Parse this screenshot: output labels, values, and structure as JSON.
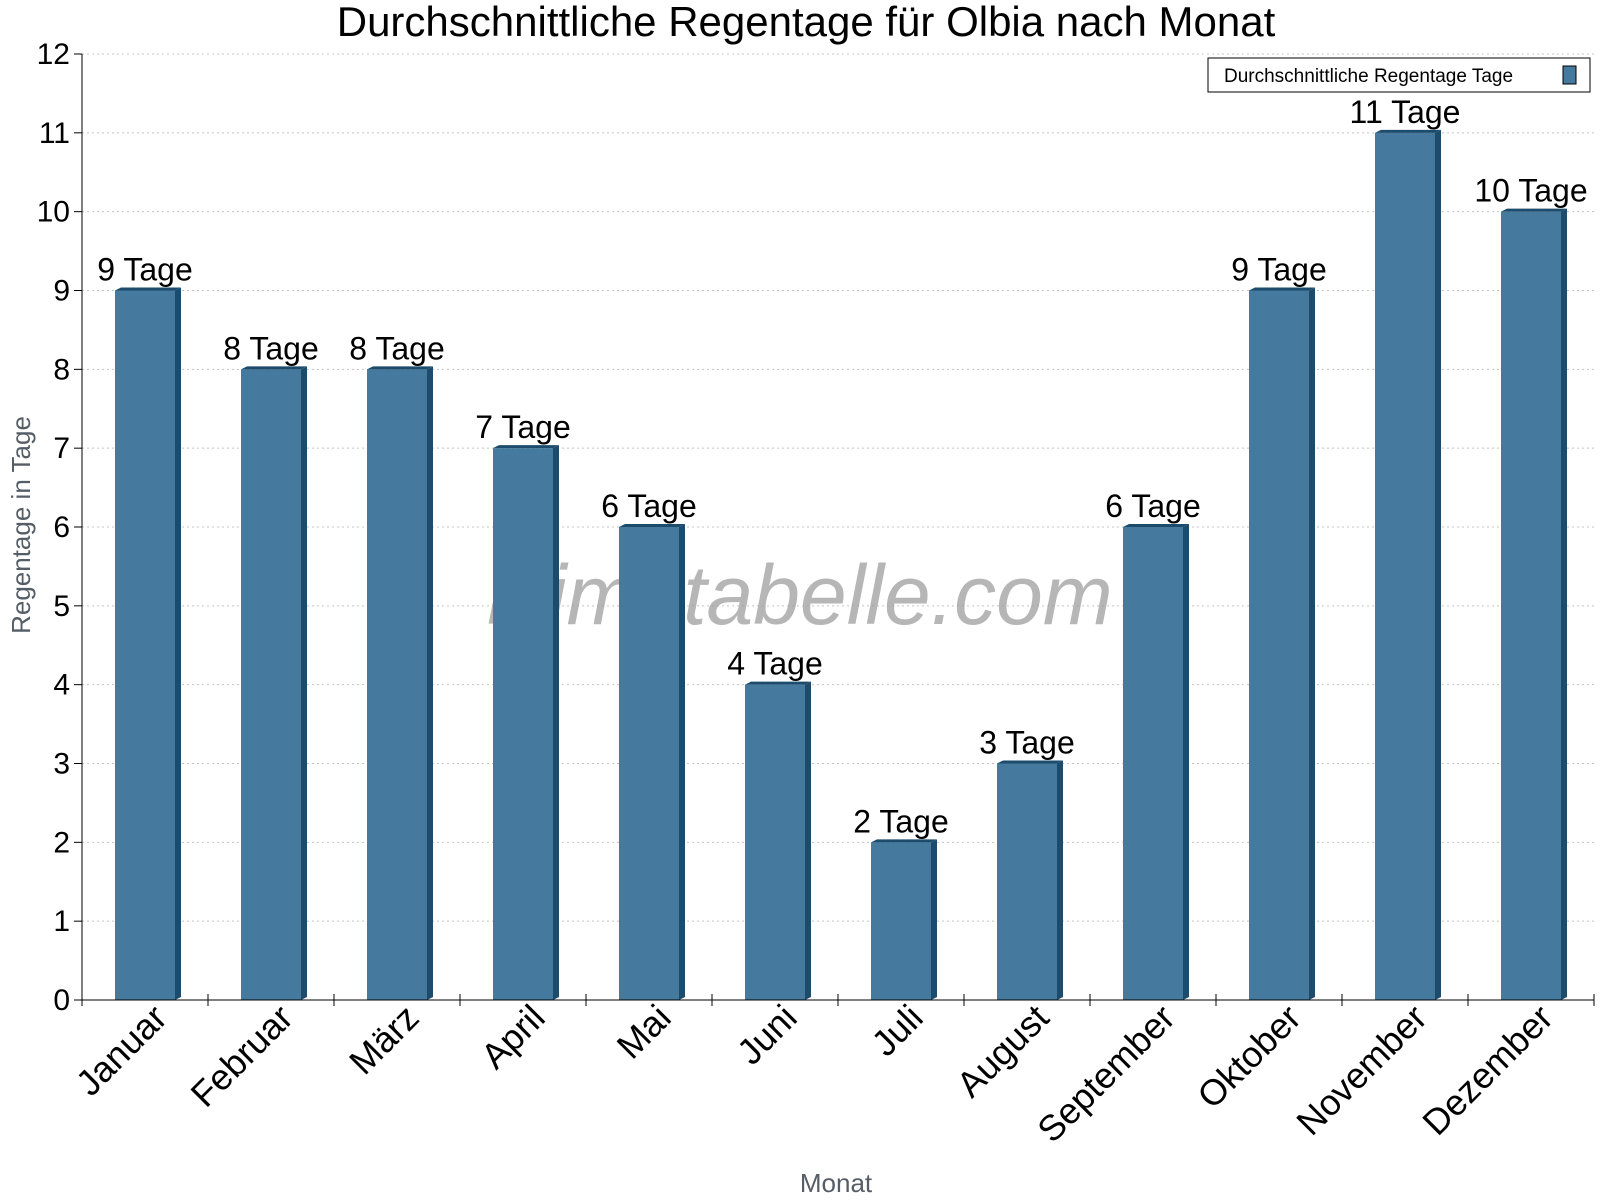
{
  "chart_data": {
    "type": "bar",
    "title": "Durchschnittliche Regentage für Olbia nach Monat",
    "xlabel": "Monat",
    "ylabel": "Regentage in Tage",
    "ylim": [
      0,
      12
    ],
    "yticks": [
      0,
      1,
      2,
      3,
      4,
      5,
      6,
      7,
      8,
      9,
      10,
      11,
      12
    ],
    "grid": true,
    "legend_position": "top-right",
    "categories": [
      "Januar",
      "Februar",
      "März",
      "April",
      "Mai",
      "Juni",
      "Juli",
      "August",
      "September",
      "Oktober",
      "November",
      "Dezember"
    ],
    "series": [
      {
        "name": "Durchschnittliche Regentage Tage",
        "values": [
          9,
          8,
          8,
          7,
          6,
          4,
          2,
          3,
          6,
          9,
          11,
          10
        ],
        "labels": [
          "9 Tage",
          "8 Tage",
          "8 Tage",
          "7 Tage",
          "6 Tage",
          "4 Tage",
          "2 Tage",
          "3 Tage",
          "6 Tage",
          "9 Tage",
          "11 Tage",
          "10 Tage"
        ],
        "color": "#457a9e",
        "edge_color": "#1d4b6b"
      }
    ]
  },
  "watermark": "klimatabelle.com"
}
